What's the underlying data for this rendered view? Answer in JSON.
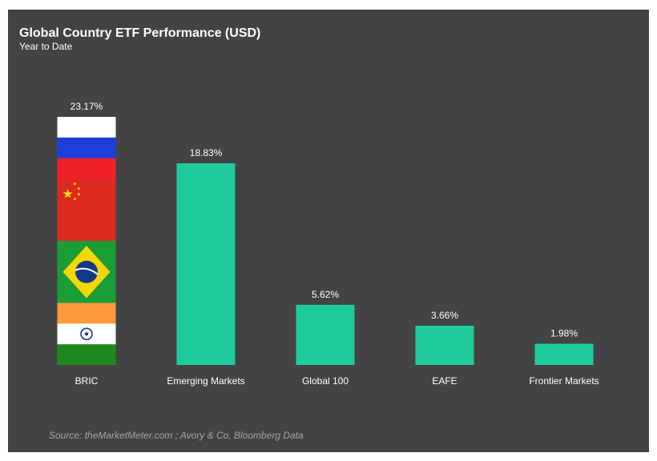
{
  "chart_data": {
    "type": "bar",
    "title": "Global Country ETF Performance (USD)",
    "subtitle": "Year to Date",
    "source": "Source: theMarketMeter.com ; Avory & Co, Bloomberg Data",
    "categories": [
      "BRIC",
      "Emerging Markets",
      "Global 100",
      "EAFE",
      "Frontier Markets"
    ],
    "values": [
      23.17,
      18.83,
      5.62,
      3.66,
      1.98
    ],
    "value_labels": [
      "23.17%",
      "18.83%",
      "5.62%",
      "3.66%",
      "1.98%"
    ],
    "bar_color": "#1fcb9b",
    "first_bar_fill": "flags: Russia, China, Brazil, India",
    "ylim": [
      0,
      23.17
    ],
    "grid": false,
    "legend": "none"
  },
  "colors": {
    "background": "#434345",
    "text": "#ffffff",
    "source_text": "#a3a3a6"
  }
}
